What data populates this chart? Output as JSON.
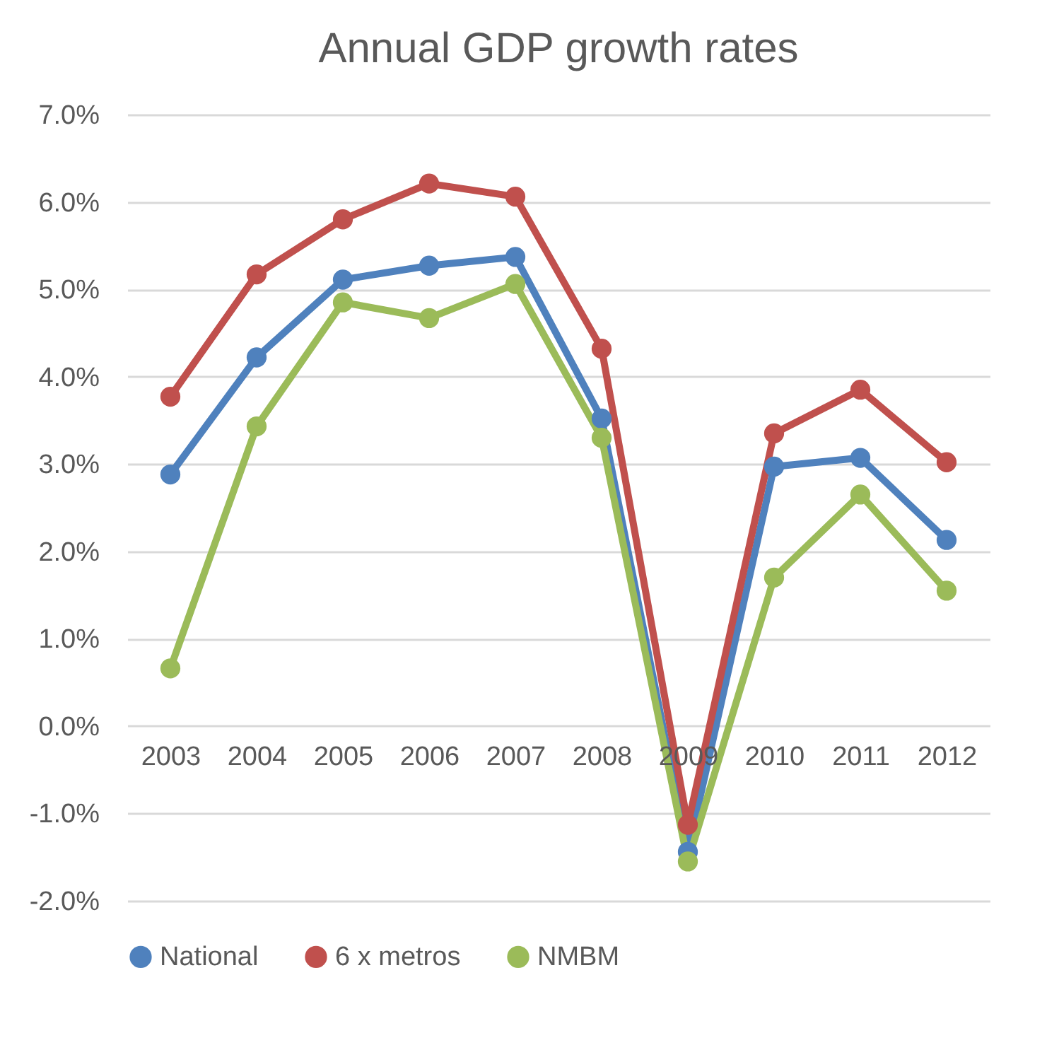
{
  "chart_data": {
    "type": "line",
    "title": "Annual GDP growth rates",
    "categories": [
      "2003",
      "2004",
      "2005",
      "2006",
      "2007",
      "2008",
      "2009",
      "2010",
      "2011",
      "2012"
    ],
    "series": [
      {
        "name": "National",
        "color": "#4f81bd",
        "values": [
          2.88,
          4.22,
          5.11,
          5.27,
          5.37,
          3.52,
          -1.44,
          2.97,
          3.07,
          2.13
        ]
      },
      {
        "name": "6 x metros",
        "color": "#c0504d",
        "values": [
          3.77,
          5.17,
          5.8,
          6.21,
          6.06,
          4.32,
          -1.13,
          3.35,
          3.85,
          3.02
        ]
      },
      {
        "name": "NMBM",
        "color": "#9bbb59",
        "values": [
          0.66,
          3.43,
          4.85,
          4.67,
          5.06,
          3.3,
          -1.55,
          1.7,
          2.65,
          1.55
        ]
      }
    ],
    "ylim": [
      -2,
      7
    ],
    "yticks": [
      {
        "value": -2,
        "label": "-2.0%"
      },
      {
        "value": -1,
        "label": "-1.0%"
      },
      {
        "value": 0,
        "label": "0.0%"
      },
      {
        "value": 1,
        "label": "1.0%"
      },
      {
        "value": 2,
        "label": "2.0%"
      },
      {
        "value": 3,
        "label": "3.0%"
      },
      {
        "value": 4,
        "label": "4.0%"
      },
      {
        "value": 5,
        "label": "5.0%"
      },
      {
        "value": 6,
        "label": "6.0%"
      },
      {
        "value": 7,
        "label": "7.0%"
      }
    ],
    "grid": "y",
    "legend": "bottom",
    "marker": "circle",
    "line_style": "solid"
  }
}
